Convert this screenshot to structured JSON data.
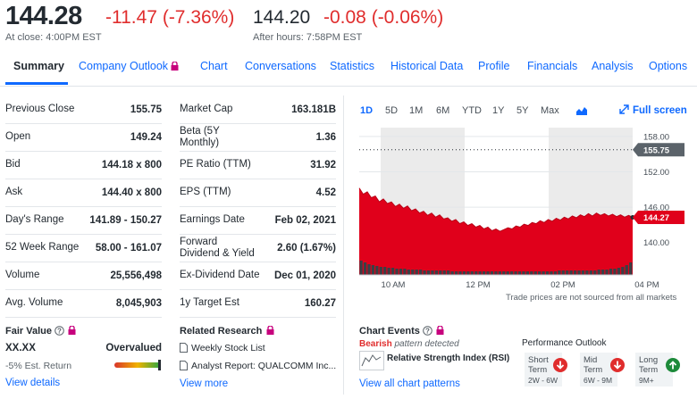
{
  "quote": {
    "price": "144.28",
    "change": "-11.47 (-7.36%)",
    "close_label": "At close: 4:00PM EST",
    "ah_price": "144.20",
    "ah_change": "-0.08 (-0.06%)",
    "ah_label": "After hours: 7:58PM EST"
  },
  "tabs": [
    "Summary",
    "Company Outlook",
    "Chart",
    "Conversations",
    "Statistics",
    "Historical Data",
    "Profile",
    "Financials",
    "Analysis",
    "Options"
  ],
  "stats_left": [
    {
      "label": "Previous Close",
      "value": "155.75"
    },
    {
      "label": "Open",
      "value": "149.24"
    },
    {
      "label": "Bid",
      "value": "144.18 x 800"
    },
    {
      "label": "Ask",
      "value": "144.40 x 800"
    },
    {
      "label": "Day's Range",
      "value": "141.89 - 150.27"
    },
    {
      "label": "52 Week Range",
      "value": "58.00 - 161.07"
    },
    {
      "label": "Volume",
      "value": "25,556,498"
    },
    {
      "label": "Avg. Volume",
      "value": "8,045,903"
    }
  ],
  "stats_right": [
    {
      "label": "Market Cap",
      "label2": "",
      "value": "163.181B"
    },
    {
      "label": "Beta (5Y",
      "label2": "Monthly)",
      "value": "1.36"
    },
    {
      "label": "PE Ratio (TTM)",
      "label2": "",
      "value": "31.92"
    },
    {
      "label": "EPS (TTM)",
      "label2": "",
      "value": "4.52"
    },
    {
      "label": "Earnings Date",
      "label2": "",
      "value": "Feb 02, 2021"
    },
    {
      "label": "Forward",
      "label2": "Dividend & Yield",
      "value": "2.60 (1.67%)"
    },
    {
      "label": "Ex-Dividend Date",
      "label2": "",
      "value": "Dec 01, 2020"
    },
    {
      "label": "1y Target Est",
      "label2": "",
      "value": "160.27"
    }
  ],
  "fair_value": {
    "title": "Fair Value",
    "value": "XX.XX",
    "rating": "Overvalued",
    "est_return": "-5% Est. Return",
    "link": "View details"
  },
  "research": {
    "title": "Related Research",
    "items": [
      "Weekly Stock List",
      "Analyst Report: QUALCOMM Inc..."
    ],
    "link": "View more"
  },
  "chart_controls": {
    "ranges": [
      "1D",
      "5D",
      "1M",
      "6M",
      "YTD",
      "1Y",
      "5Y",
      "Max"
    ],
    "fullscreen": "Full screen",
    "note": "Trade prices are not sourced from all markets"
  },
  "chart_data": {
    "type": "area",
    "x_ticks": [
      "10 AM",
      "12 PM",
      "02 PM",
      "04 PM"
    ],
    "y_ticks": [
      158.0,
      152.0,
      146.0,
      140.0
    ],
    "y_tick_labels": [
      "158.00",
      "152.00",
      "146.00",
      "140.00"
    ],
    "ylim": [
      134.5,
      159.5
    ],
    "previous_close": 155.75,
    "previous_close_label": "155.75",
    "last": 144.27,
    "last_label": "144.27",
    "series": [
      {
        "values": [
          149.24,
          148.2,
          148.6,
          147.6,
          147.9,
          146.9,
          147.4,
          146.6,
          146.9,
          146.1,
          146.5,
          145.8,
          146.2,
          145.4,
          145.7,
          145.0,
          145.3,
          144.6,
          145.0,
          144.3,
          144.7,
          144.0,
          144.2,
          143.6,
          143.9,
          143.2,
          143.5,
          142.9,
          143.2,
          142.6,
          142.9,
          142.3,
          142.6,
          142.0,
          142.3,
          141.89,
          142.2,
          142.5,
          142.3,
          142.8,
          142.6,
          143.1,
          142.9,
          143.4,
          143.2,
          143.7,
          143.4,
          143.9,
          143.6,
          144.1,
          143.8,
          144.3,
          144.0,
          144.5,
          144.2,
          144.7,
          144.4,
          144.9,
          144.5,
          145.0,
          144.6,
          144.9,
          144.5,
          144.8,
          144.4,
          144.7,
          144.3,
          144.6,
          144.27
        ]
      }
    ],
    "volume": [
      16,
      14,
      12,
      11,
      10,
      9,
      9,
      8,
      8,
      7,
      7,
      7,
      6,
      6,
      6,
      6,
      5,
      5,
      5,
      5,
      5,
      5,
      5,
      4,
      4,
      4,
      4,
      4,
      4,
      4,
      4,
      4,
      4,
      4,
      4,
      4,
      4,
      4,
      4,
      4,
      4,
      4,
      4,
      4,
      4,
      4,
      4,
      4,
      4,
      4,
      5,
      5,
      5,
      5,
      5,
      5,
      5,
      5,
      5,
      5,
      6,
      6,
      6,
      7,
      7,
      8,
      9,
      11,
      14
    ],
    "colors": {
      "area": "#e0001b",
      "shade": "#ebebeb",
      "prev_close_tag": "#5b636a",
      "last_tag": "#e0001b"
    }
  },
  "chart_events": {
    "title": "Chart Events",
    "signal": "Bearish",
    "signal_rest": "pattern detected",
    "pattern": "Relative Strength Index (RSI)",
    "link": "View all chart patterns"
  },
  "performance": {
    "title": "Performance Outlook",
    "items": [
      {
        "label1": "Short",
        "label2": "Term",
        "range": "2W - 6W",
        "dir": "down"
      },
      {
        "label1": "Mid",
        "label2": "Term",
        "range": "6W - 9M",
        "dir": "down"
      },
      {
        "label1": "Long",
        "label2": "Term",
        "range": "9M+",
        "dir": "up"
      }
    ]
  },
  "colors": {
    "link": "#0f69ff",
    "negative": "#e02d2d",
    "positive": "#1d8a3a",
    "lock": "#c7007d"
  }
}
